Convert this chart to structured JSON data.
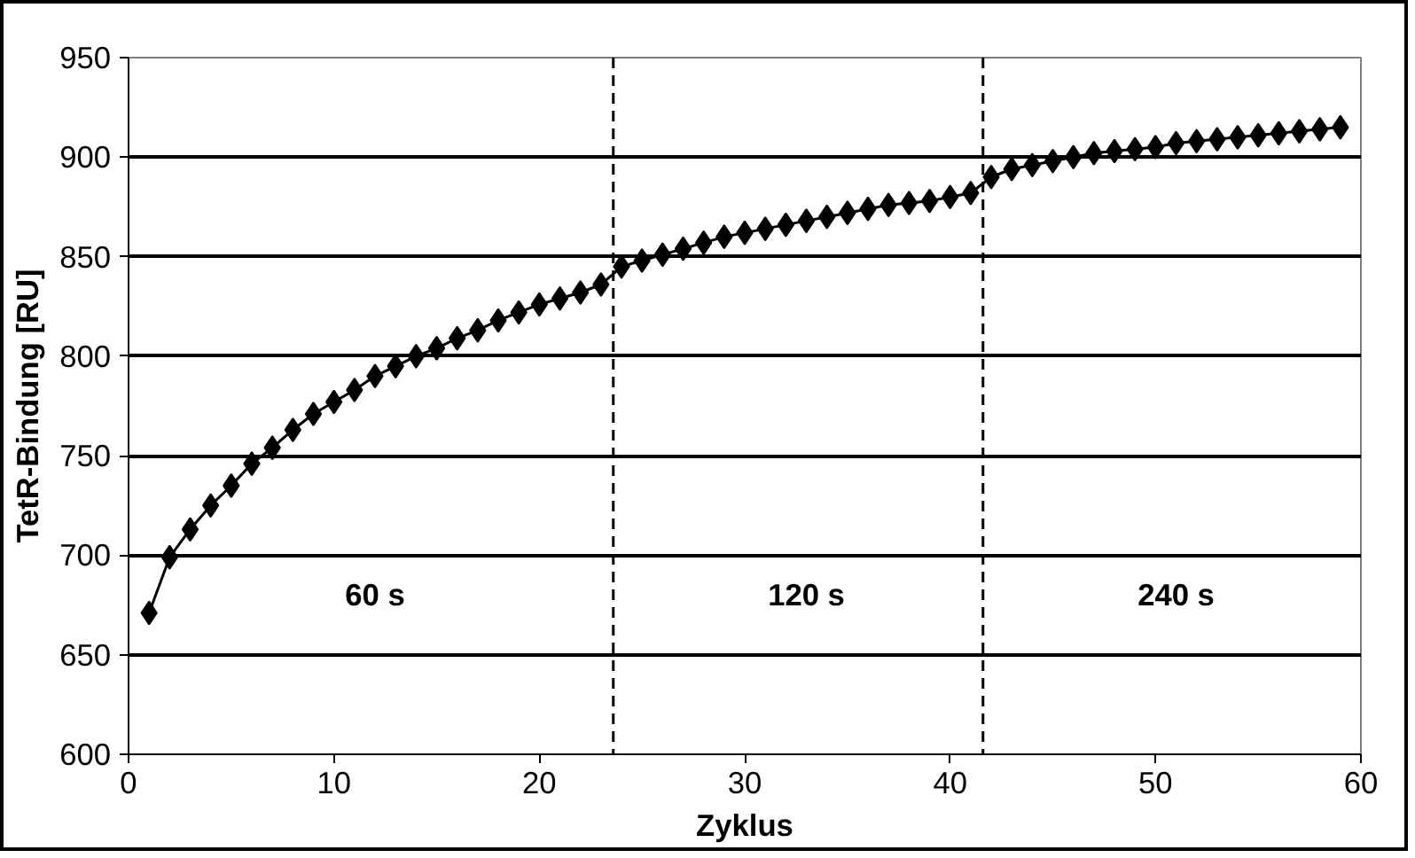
{
  "chart_data": {
    "type": "line",
    "xlabel": "Zyklus",
    "ylabel": "TetR-Bindung [RU]",
    "x": [
      1,
      2,
      3,
      4,
      5,
      6,
      7,
      8,
      9,
      10,
      11,
      12,
      13,
      14,
      15,
      16,
      17,
      18,
      19,
      20,
      21,
      22,
      23,
      24,
      25,
      26,
      27,
      28,
      29,
      30,
      31,
      32,
      33,
      34,
      35,
      36,
      37,
      38,
      39,
      40,
      41,
      42,
      43,
      44,
      45,
      46,
      47,
      48,
      49,
      50,
      51,
      52,
      53,
      54,
      55,
      56,
      57,
      58,
      59
    ],
    "series": [
      {
        "color": "#000000",
        "values": [
          671,
          699,
          713,
          725,
          735,
          746,
          754,
          763,
          771,
          777,
          783,
          790,
          795,
          800,
          804,
          809,
          813,
          818,
          822,
          826,
          829,
          832,
          836,
          845,
          848,
          851,
          854,
          857,
          860,
          862,
          864,
          866,
          868,
          870,
          872,
          874,
          876,
          877,
          878,
          880,
          882,
          890,
          894,
          896,
          898,
          900,
          902,
          903,
          904,
          905,
          907,
          908,
          909,
          910,
          911,
          912,
          913,
          914,
          915
        ]
      }
    ],
    "xlim": [
      0,
      60
    ],
    "xticks": [
      0,
      10,
      20,
      30,
      40,
      50,
      60
    ],
    "ylim": [
      600,
      950
    ],
    "yticks": [
      600,
      650,
      700,
      750,
      800,
      850,
      900,
      950
    ],
    "grid": "y",
    "marker": "diamond",
    "line_style": "solid",
    "ref_lines": [
      {
        "axis": "x",
        "value": 23.6,
        "line_style": "dashed",
        "color": "#000000"
      },
      {
        "axis": "x",
        "value": 41.6,
        "line_style": "dashed",
        "color": "#000000"
      }
    ],
    "annotations": [
      {
        "text": "60 s",
        "x": 12,
        "y": 680
      },
      {
        "text": "120 s",
        "x": 33,
        "y": 680
      },
      {
        "text": "240 s",
        "x": 51,
        "y": 680
      }
    ]
  }
}
